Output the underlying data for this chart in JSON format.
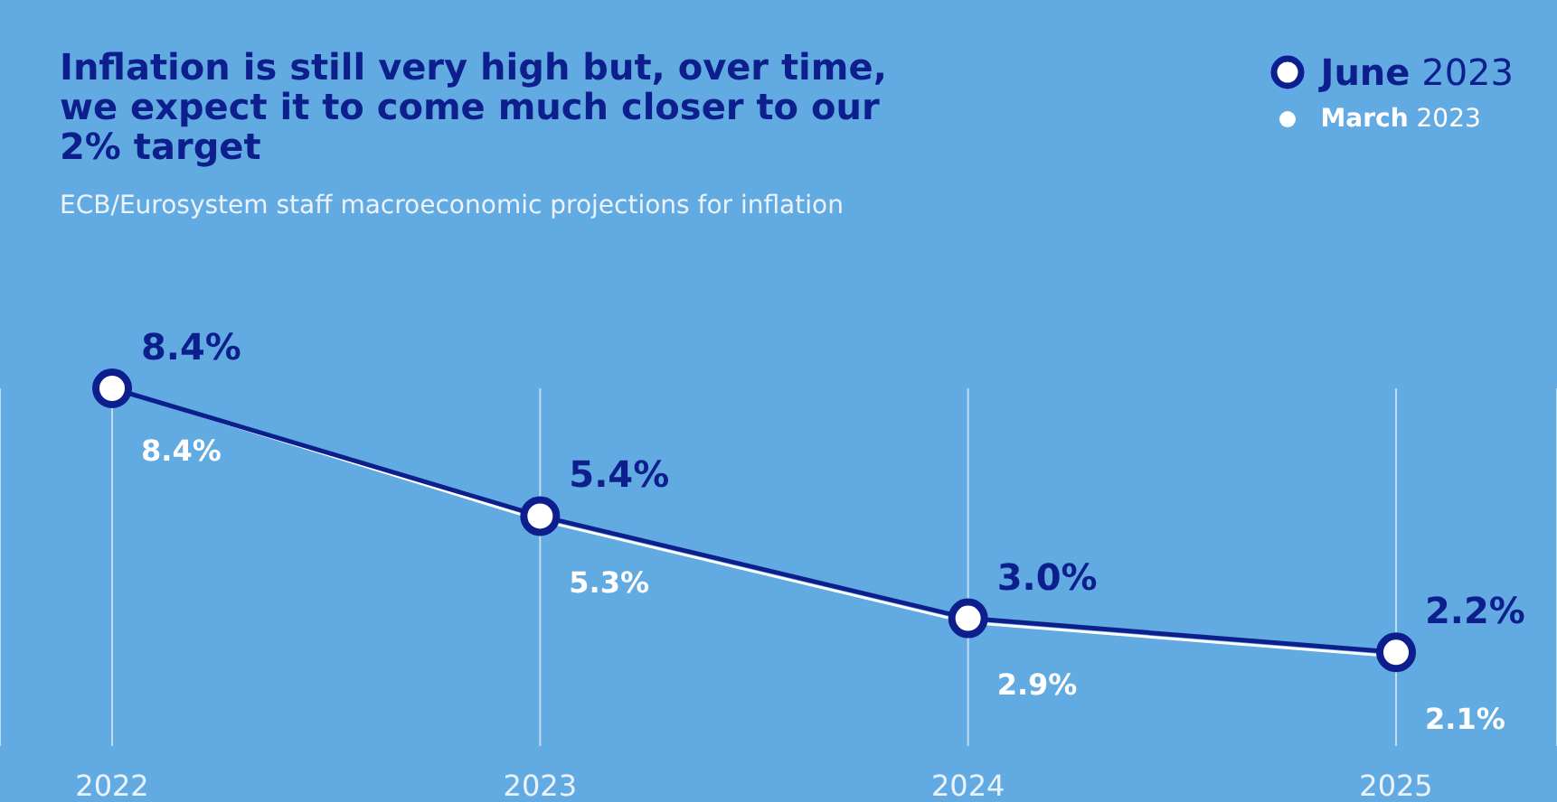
{
  "chart_data": {
    "type": "line",
    "title": "Inflation is still very high but, over time, we expect it to come much closer to our 2% target",
    "subtitle": "ECB/Eurosystem staff macroeconomic projections for inflation",
    "categories": [
      "2022",
      "2023",
      "2024",
      "2025"
    ],
    "series": [
      {
        "name": "June 2023",
        "color": "#0d1f8c",
        "values": [
          8.4,
          5.4,
          3.0,
          2.2
        ],
        "value_labels": [
          "8.4%",
          "5.4%",
          "3.0%",
          "2.2%"
        ]
      },
      {
        "name": "March 2023",
        "color": "#ffffff",
        "values": [
          8.4,
          5.3,
          2.9,
          2.1
        ],
        "value_labels": [
          "8.4%",
          "5.3%",
          "2.9%",
          "2.1%"
        ]
      }
    ],
    "legend": "top right",
    "grid": "x",
    "marker": "circle",
    "line_style": "solid"
  }
}
